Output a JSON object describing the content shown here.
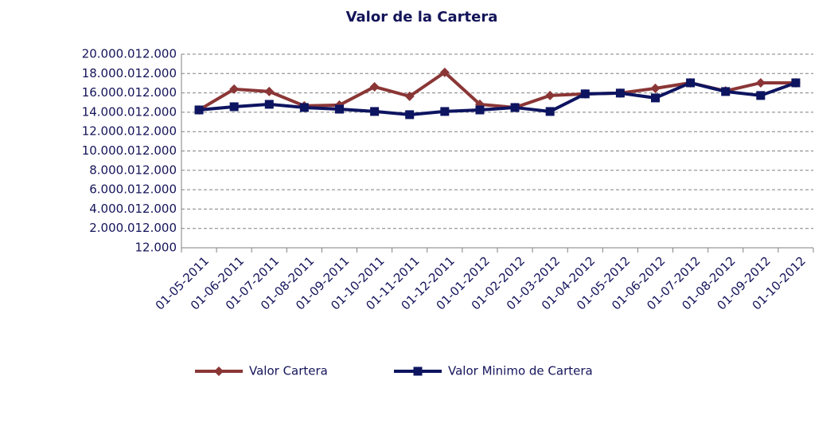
{
  "chart_data": {
    "type": "line",
    "title": "Valor de la Cartera",
    "categories": [
      "01-05-2011",
      "01-06-2011",
      "01-07-2011",
      "01-08-2011",
      "01-09-2011",
      "01-10-2011",
      "01-11-2011",
      "01-12-2011",
      "01-01-2012",
      "01-02-2012",
      "01-03-2012",
      "01-04-2012",
      "01-05-2012",
      "01-06-2012",
      "01-07-2012",
      "01-08-2012",
      "01-09-2012",
      "01-10-2012"
    ],
    "series": [
      {
        "name": "Valor Cartera",
        "color": "#8b3636",
        "marker": "diamond",
        "values": [
          14240000000,
          16390000000,
          16140000000,
          14660000000,
          14740000000,
          16630000000,
          15650000000,
          18120000000,
          14820000000,
          14490000000,
          15730000000,
          15900000000,
          15980000000,
          16470000000,
          17040000000,
          16200000000,
          17040000000,
          17040000000
        ]
      },
      {
        "name": "Valor Minimo de Cartera",
        "color": "#0d1460",
        "marker": "square",
        "values": [
          14240000000,
          14570000000,
          14820000000,
          14490000000,
          14320000000,
          14080000000,
          13750000000,
          14080000000,
          14240000000,
          14490000000,
          14080000000,
          15900000000,
          15980000000,
          15480000000,
          17040000000,
          16140000000,
          15730000000,
          17040000000
        ]
      }
    ],
    "ylim": [
      12000,
      20000012000
    ],
    "yticks": [
      {
        "value": 12000,
        "label": "12.000"
      },
      {
        "value": 2000012000,
        "label": "2.000.012.000"
      },
      {
        "value": 4000012000,
        "label": "4.000.012.000"
      },
      {
        "value": 6000012000,
        "label": "6.000.012.000"
      },
      {
        "value": 8000012000,
        "label": "8.000.012.000"
      },
      {
        "value": 10000012000,
        "label": "10.000.012.000"
      },
      {
        "value": 12000012000,
        "label": "12.000.012.000"
      },
      {
        "value": 14000012000,
        "label": "14.000.012.000"
      },
      {
        "value": 16000012000,
        "label": "16.000.012.000"
      },
      {
        "value": 18000012000,
        "label": "18.000.012.000"
      },
      {
        "value": 20000012000,
        "label": "20.000.012.000"
      }
    ],
    "grid": true,
    "legend": "bottom"
  }
}
